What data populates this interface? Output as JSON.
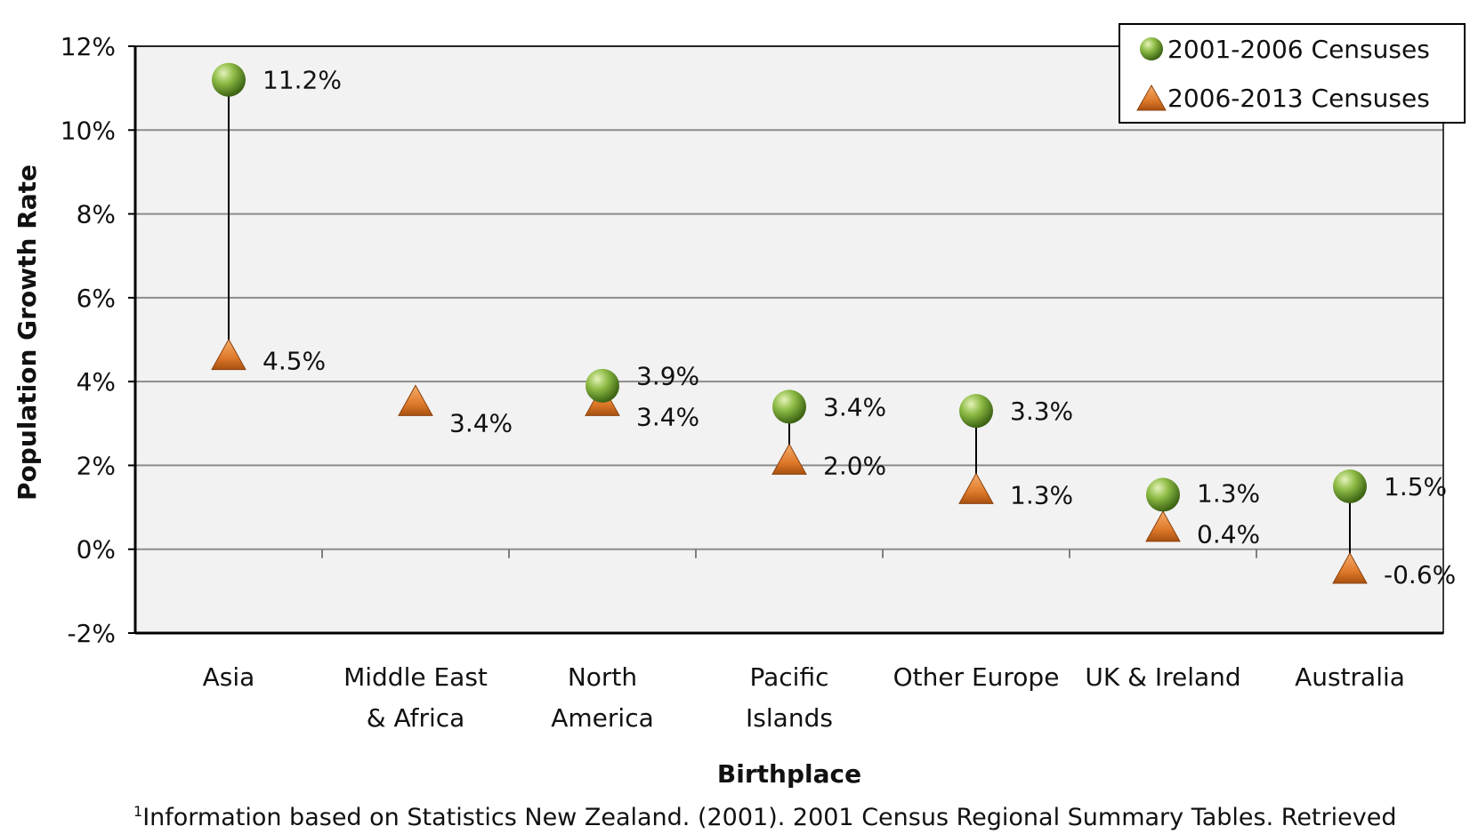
{
  "chart_data": {
    "type": "dumbbell",
    "xlabel": "Birthplace",
    "ylabel": "Population Growth Rate",
    "ylim": [
      -2,
      12
    ],
    "yticks": [
      12,
      10,
      8,
      6,
      4,
      2,
      0,
      -2
    ],
    "ytick_labels": [
      "12%",
      "10%",
      "8%",
      "6%",
      "4%",
      "2%",
      "0%",
      "-2%"
    ],
    "categories": [
      [
        "Asia"
      ],
      [
        "Middle East",
        "& Africa"
      ],
      [
        "North",
        "America"
      ],
      [
        "Pacific",
        "Islands"
      ],
      [
        "Other Europe"
      ],
      [
        "UK & Ireland"
      ],
      [
        "Australia"
      ]
    ],
    "series": [
      {
        "name": "2001-2006 Censuses",
        "marker": "circle",
        "color": "#7aa83a",
        "values": [
          11.2,
          null,
          3.9,
          3.4,
          3.3,
          1.3,
          1.5
        ],
        "labels": [
          "11.2%",
          "",
          "3.9%",
          "3.4%",
          "3.3%",
          "1.3%",
          "1.5%"
        ]
      },
      {
        "name": "2006-2013 Censuses",
        "marker": "triangle",
        "color": "#e07a2b",
        "values": [
          4.5,
          3.4,
          3.4,
          2.0,
          1.3,
          0.4,
          -0.6
        ],
        "labels": [
          "4.5%",
          "3.4%",
          "3.4%",
          "2.0%",
          "1.3%",
          "0.4%",
          "-0.6%"
        ]
      }
    ],
    "grid": true,
    "legend_position": "top-right"
  },
  "footnote": {
    "superscript": "1",
    "text": "Information based on Statistics New Zealand. (2001). 2001 Census Regional Summary Tables.  Retrieved"
  }
}
